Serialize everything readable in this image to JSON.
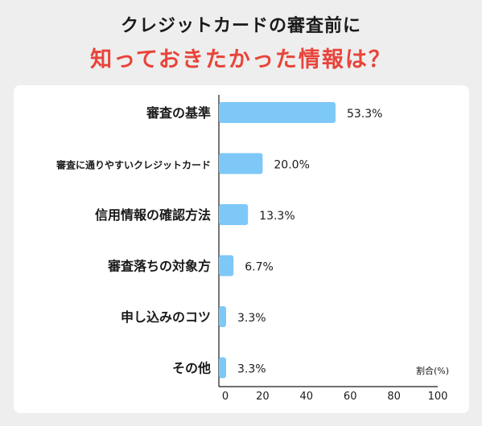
{
  "title_line1": "クレジットカードの審査前に",
  "title_line2": "知っておきたかった情報は？",
  "chart_data": {
    "type": "bar",
    "orientation": "horizontal",
    "categories": [
      "審査の基準",
      "審査に通りやすいクレジットカード",
      "信用情報の確認方法",
      "審査落ちの対象方",
      "申し込みのコツ",
      "その他"
    ],
    "values": [
      53.3,
      20.0,
      13.3,
      6.7,
      3.3,
      3.3
    ],
    "value_labels": [
      "53.3%",
      "20.0%",
      "13.3%",
      "6.7%",
      "3.3%",
      "3.3%"
    ],
    "xlim": [
      0,
      100
    ],
    "xticks": [
      0,
      20,
      40,
      60,
      80,
      100
    ],
    "xlabel": "割合(%)",
    "bar_color": "#7ec8f8"
  }
}
